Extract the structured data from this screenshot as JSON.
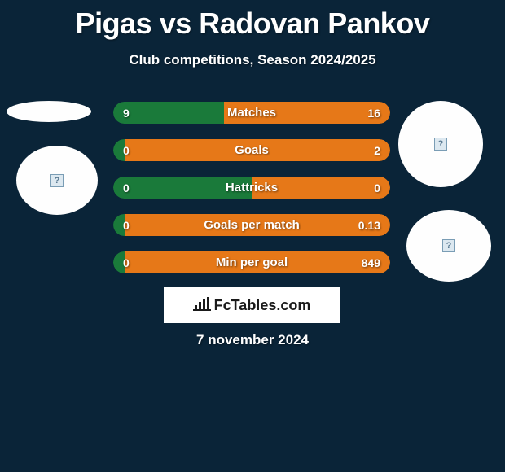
{
  "header": {
    "title": "Pigas vs Radovan Pankov",
    "subtitle": "Club competitions, Season 2024/2025"
  },
  "stats": [
    {
      "label": "Matches",
      "left_val": "9",
      "right_val": "16",
      "left_pct": 40,
      "right_pct": 60,
      "left_color": "#1a7a3a",
      "right_color": "#e67818"
    },
    {
      "label": "Goals",
      "left_val": "0",
      "right_val": "2",
      "left_pct": 4,
      "right_pct": 96,
      "left_color": "#1a7a3a",
      "right_color": "#e67818"
    },
    {
      "label": "Hattricks",
      "left_val": "0",
      "right_val": "0",
      "left_pct": 50,
      "right_pct": 50,
      "left_color": "#1a7a3a",
      "right_color": "#e67818"
    },
    {
      "label": "Goals per match",
      "left_val": "0",
      "right_val": "0.13",
      "left_pct": 4,
      "right_pct": 96,
      "left_color": "#1a7a3a",
      "right_color": "#e67818"
    },
    {
      "label": "Min per goal",
      "left_val": "0",
      "right_val": "849",
      "left_pct": 4,
      "right_pct": 96,
      "left_color": "#1a7a3a",
      "right_color": "#e67818"
    }
  ],
  "footer": {
    "logo_text": "FcTables.com",
    "date": "7 november 2024"
  },
  "colors": {
    "background": "#0a2438",
    "text": "#ffffff",
    "circle_fill": "#fefefe"
  },
  "icons": {
    "placeholder": "?"
  }
}
